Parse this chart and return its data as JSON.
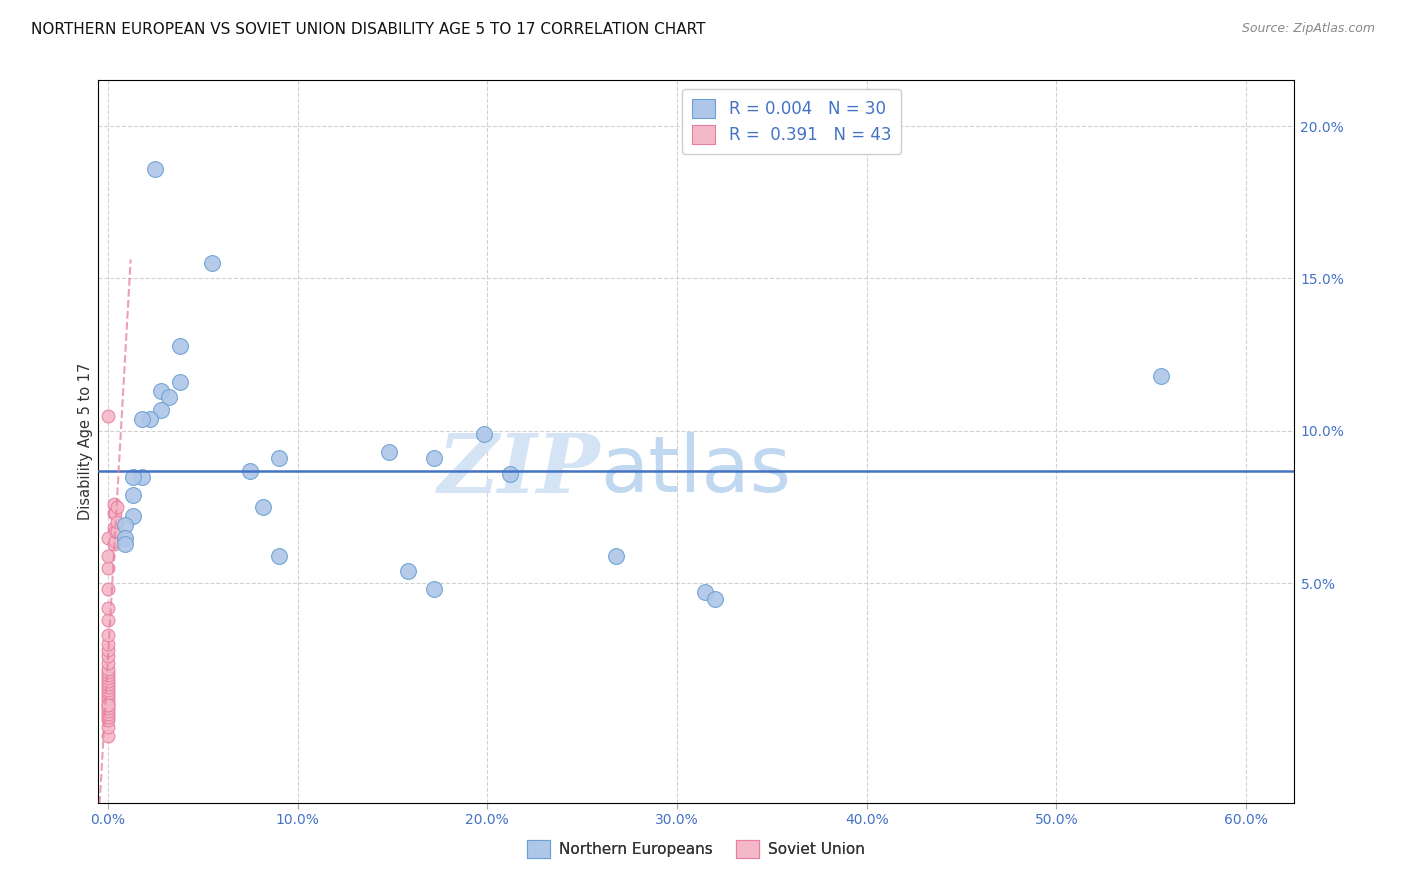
{
  "title": "NORTHERN EUROPEAN VS SOVIET UNION DISABILITY AGE 5 TO 17 CORRELATION CHART",
  "source": "Source: ZipAtlas.com",
  "xlabel_ticks_pct": [
    "0.0%",
    "10.0%",
    "20.0%",
    "30.0%",
    "40.0%",
    "50.0%",
    "60.0%"
  ],
  "xlabel_vals": [
    0.0,
    0.1,
    0.2,
    0.3,
    0.4,
    0.5,
    0.6
  ],
  "ylabel_ticks_pct": [
    "5.0%",
    "10.0%",
    "15.0%",
    "20.0%"
  ],
  "ylabel_vals": [
    0.05,
    0.1,
    0.15,
    0.2
  ],
  "ylabel_label": "Disability Age 5 to 17",
  "xlim": [
    -0.005,
    0.625
  ],
  "ylim": [
    -0.022,
    0.215
  ],
  "legend_r_entries": [
    {
      "r_val": "0.004",
      "n_val": "30",
      "color": "#aec6e8",
      "edge": "#6aa0d4"
    },
    {
      "r_val": "0.391",
      "n_val": "43",
      "color": "#f4b8c8",
      "edge": "#e87fa0"
    }
  ],
  "legend_labels": [
    "Northern Europeans",
    "Soviet Union"
  ],
  "ne_color": "#aec6e8",
  "su_color": "#f4b8c8",
  "ne_edge_color": "#6aa0d4",
  "su_edge_color": "#e87fa0",
  "northern_european_x": [
    0.025,
    0.038,
    0.038,
    0.028,
    0.032,
    0.028,
    0.022,
    0.018,
    0.018,
    0.013,
    0.013,
    0.013,
    0.009,
    0.009,
    0.009,
    0.055,
    0.075,
    0.082,
    0.09,
    0.09,
    0.148,
    0.158,
    0.172,
    0.172,
    0.198,
    0.212,
    0.268,
    0.315,
    0.32,
    0.555
  ],
  "northern_european_y": [
    0.186,
    0.128,
    0.116,
    0.113,
    0.111,
    0.107,
    0.104,
    0.104,
    0.085,
    0.085,
    0.079,
    0.072,
    0.069,
    0.065,
    0.063,
    0.155,
    0.087,
    0.075,
    0.091,
    0.059,
    0.093,
    0.054,
    0.091,
    0.048,
    0.099,
    0.086,
    0.059,
    0.047,
    0.045,
    0.118
  ],
  "soviet_union_x": [
    0.0,
    0.0,
    0.0,
    0.0,
    0.0,
    0.0,
    0.0,
    0.0,
    0.0,
    0.0,
    0.0,
    0.0,
    0.0,
    0.0,
    0.0,
    0.0,
    0.0,
    0.0,
    0.0,
    0.0,
    0.0,
    0.0,
    0.0,
    0.0,
    0.0,
    0.0,
    0.0,
    0.0,
    0.0,
    0.0,
    0.0,
    0.0,
    0.0,
    0.003,
    0.003,
    0.003,
    0.003,
    0.004,
    0.004,
    0.004,
    0.005,
    0.005,
    0.005
  ],
  "soviet_union_y": [
    0.0,
    0.003,
    0.005,
    0.006,
    0.007,
    0.008,
    0.009,
    0.01,
    0.011,
    0.012,
    0.013,
    0.014,
    0.015,
    0.016,
    0.017,
    0.018,
    0.019,
    0.02,
    0.021,
    0.022,
    0.024,
    0.026,
    0.028,
    0.03,
    0.033,
    0.038,
    0.042,
    0.048,
    0.055,
    0.059,
    0.065,
    0.105,
    0.01,
    0.063,
    0.068,
    0.073,
    0.076,
    0.064,
    0.067,
    0.073,
    0.067,
    0.07,
    0.075
  ],
  "blue_hline_y": 0.087,
  "su_trend_x0": 0.0,
  "su_trend_y0": 0.006,
  "su_trend_x1": 0.009,
  "su_trend_y1": 0.105,
  "title_fontsize": 11,
  "source_fontsize": 9,
  "axis_color": "#4472c4",
  "grid_color": "#cccccc",
  "watermark_color": "#d4e4f5",
  "watermark_fontsize": 60
}
